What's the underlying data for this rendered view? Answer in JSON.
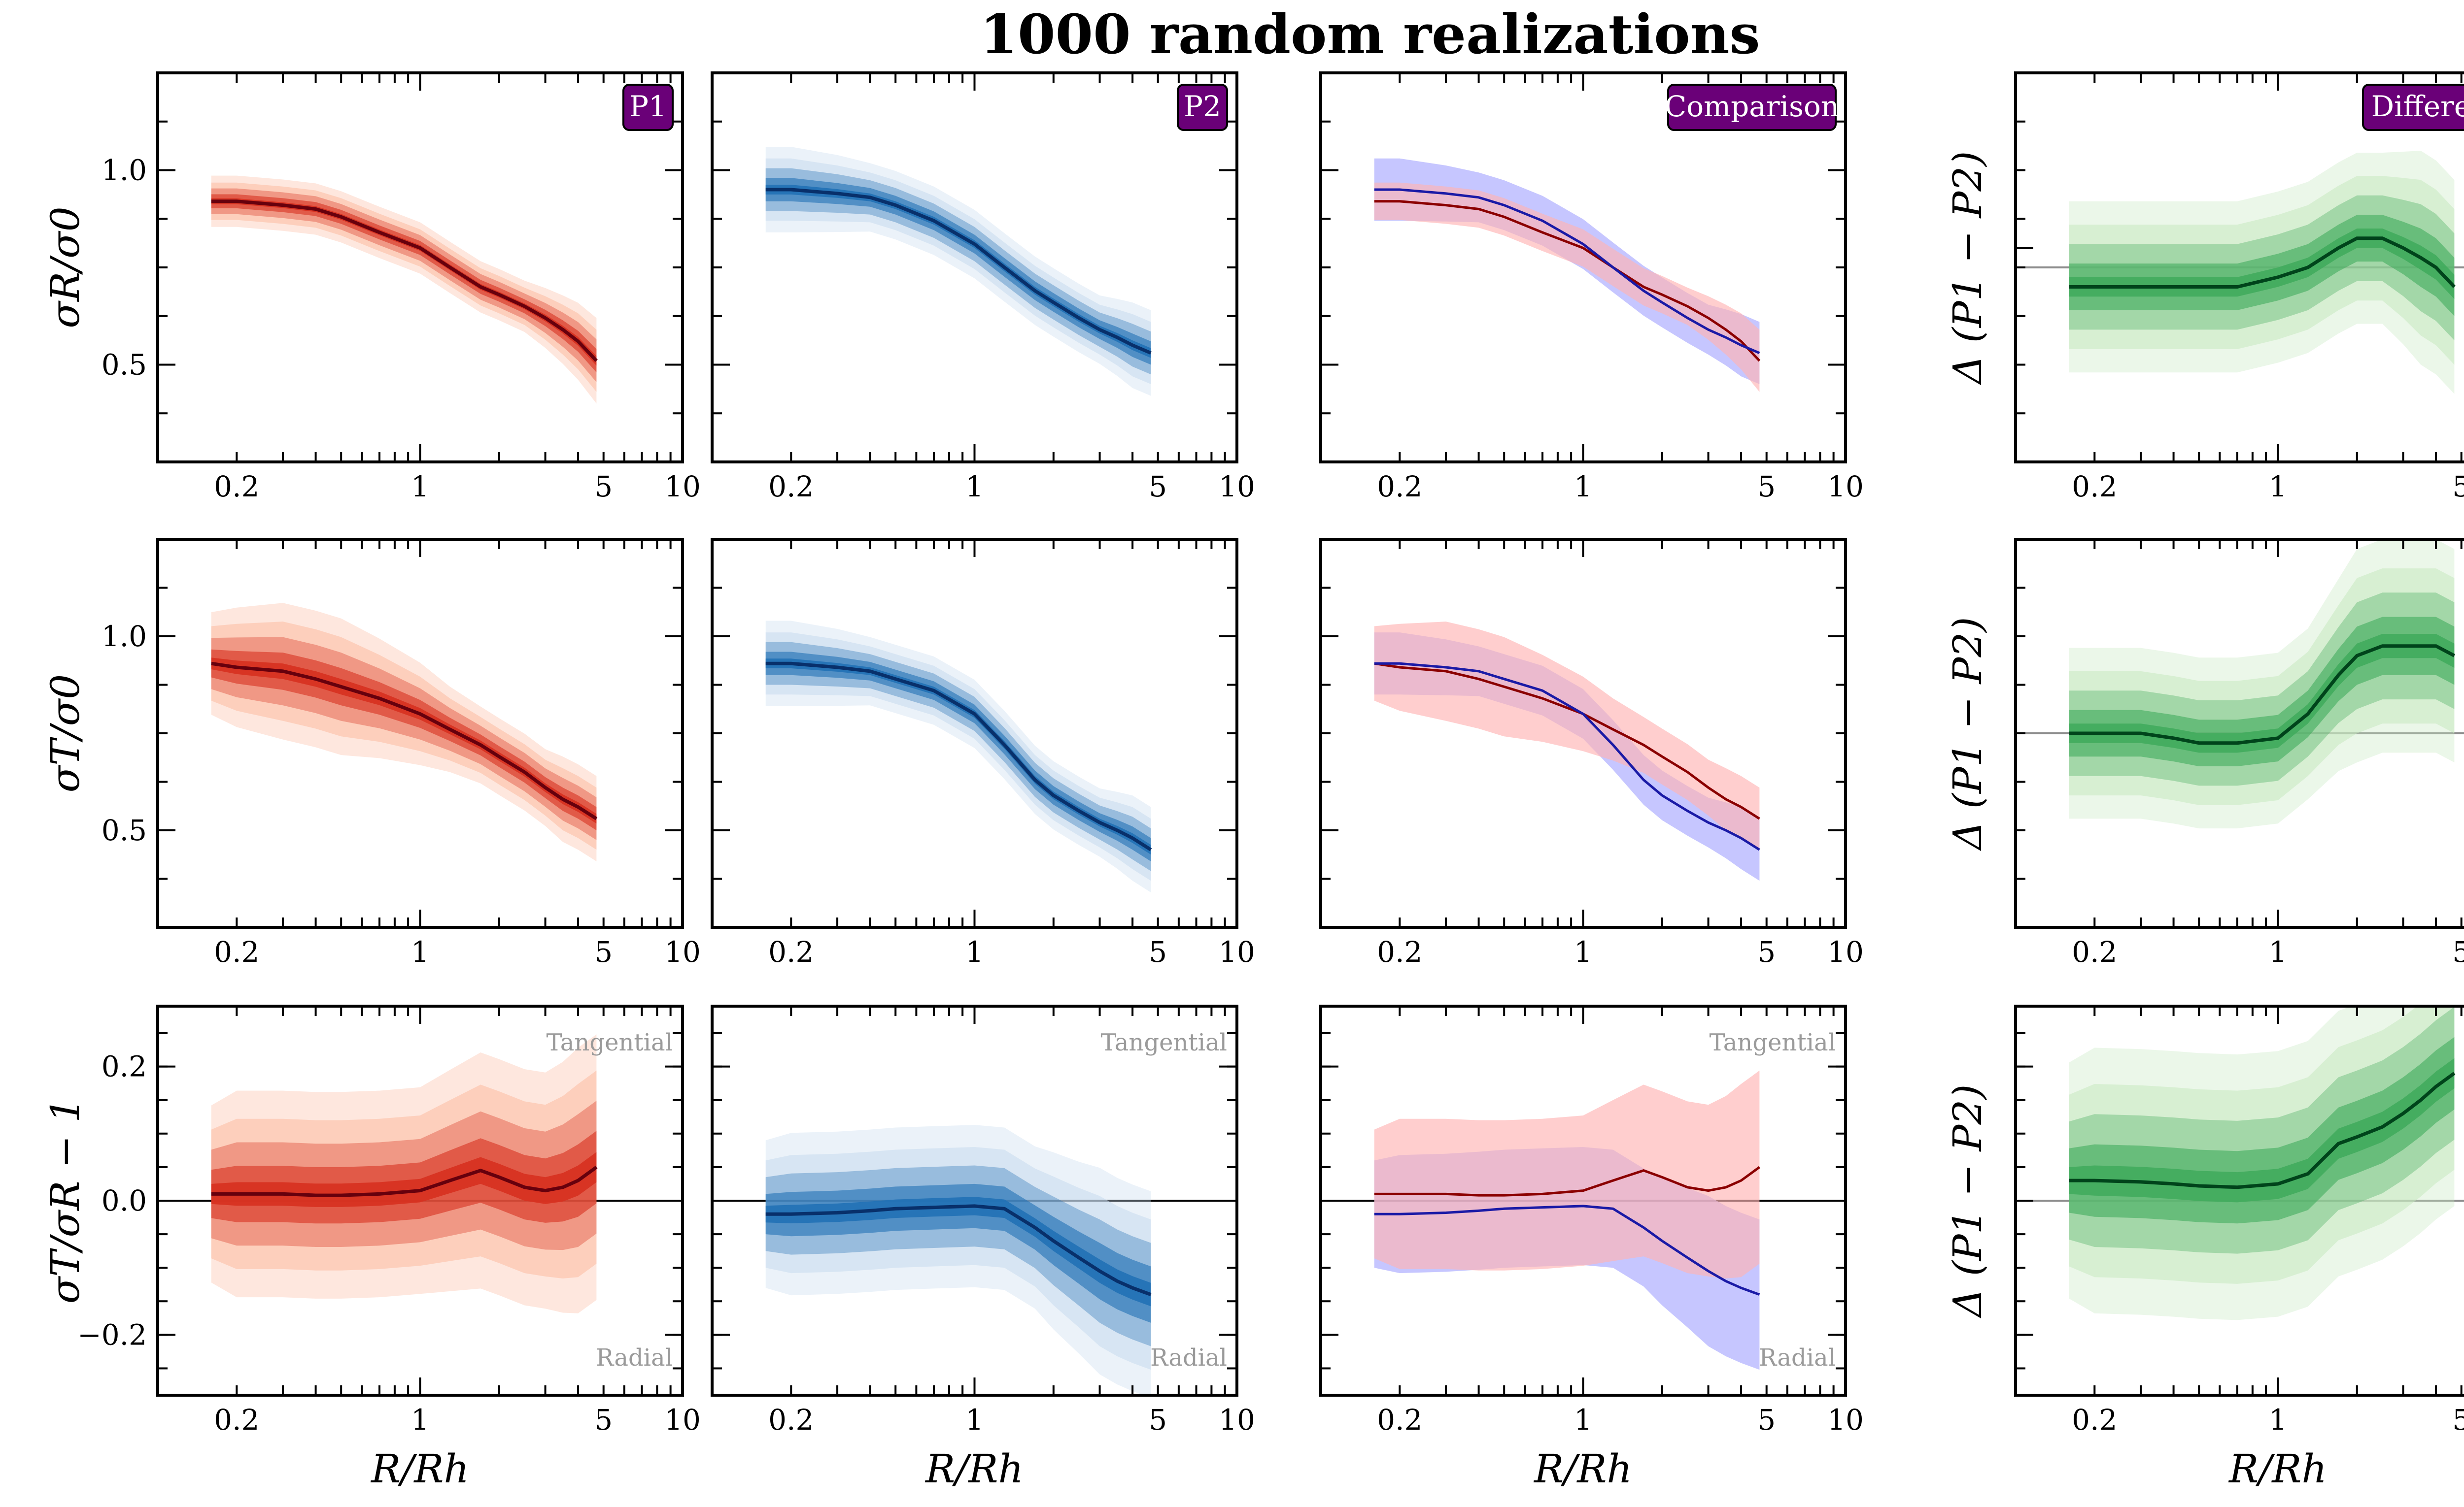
{
  "title": "1000 random realizations",
  "colors": {
    "P1": "#d7301f",
    "P1_band": "#fcbba1",
    "P1_line": "#67000d",
    "P2": "#2171b5",
    "P2_band": "#c6dbef",
    "P2_line": "#08306b",
    "diff": "#41ab5d",
    "diff_band": "#c7e9c0",
    "diff_line": "#00441b",
    "cmp_red_band": "#ffb3b3",
    "cmp_blue_band": "#b3b3ff",
    "badge_bg": "#6a0078"
  },
  "chart_data": {
    "type": "line",
    "x_scale": "log",
    "xlim": [
      0.1,
      10
    ],
    "xticks": [
      0.2,
      1,
      5,
      10
    ],
    "xtick_labels": [
      "0.2",
      "1",
      "5",
      "10"
    ],
    "xlabel": "R/Rh",
    "x": [
      0.16,
      0.2,
      0.3,
      0.4,
      0.5,
      0.7,
      1.0,
      1.3,
      1.7,
      2.0,
      2.5,
      3.0,
      3.5,
      4.0,
      4.7
    ],
    "rows": [
      {
        "ylabel": "σR/σ0",
        "ylim": [
          0.25,
          1.25
        ],
        "yticks": [
          0.5,
          1.0
        ],
        "ytick_labels": [
          "0.5",
          "1.0"
        ],
        "series": [
          {
            "name": "P1",
            "values": [
              0.92,
              0.92,
              0.91,
              0.9,
              0.88,
              0.84,
              0.8,
              0.75,
              0.7,
              0.68,
              0.65,
              0.62,
              0.59,
              0.56,
              0.51
            ],
            "spread": [
              0.03,
              0.03,
              0.03,
              0.03,
              0.03,
              0.03,
              0.03,
              0.03,
              0.03,
              0.03,
              0.03,
              0.035,
              0.04,
              0.045,
              0.05
            ]
          },
          {
            "name": "P2",
            "values": [
              0.95,
              0.95,
              0.94,
              0.93,
              0.91,
              0.87,
              0.81,
              0.75,
              0.69,
              0.66,
              0.62,
              0.59,
              0.57,
              0.55,
              0.53
            ],
            "spread": [
              0.05,
              0.05,
              0.045,
              0.04,
              0.04,
              0.04,
              0.04,
              0.04,
              0.04,
              0.04,
              0.04,
              0.04,
              0.045,
              0.05,
              0.05
            ]
          }
        ],
        "difference": {
          "values": [
            -0.02,
            -0.02,
            -0.02,
            -0.02,
            -0.02,
            -0.02,
            -0.01,
            0.0,
            0.02,
            0.03,
            0.03,
            0.02,
            0.01,
            0.0,
            -0.02
          ],
          "spread": [
            0.04,
            0.04,
            0.04,
            0.04,
            0.04,
            0.04,
            0.04,
            0.04,
            0.04,
            0.04,
            0.04,
            0.045,
            0.05,
            0.05,
            0.05
          ],
          "ylim": [
            -0.2,
            0.2
          ]
        }
      },
      {
        "ylabel": "σT/σ0",
        "ylim": [
          0.25,
          1.25
        ],
        "yticks": [
          0.5,
          1.0
        ],
        "ytick_labels": [
          "0.5",
          "1.0"
        ],
        "series": [
          {
            "name": "P1",
            "values": [
              0.93,
              0.92,
              0.91,
              0.89,
              0.87,
              0.84,
              0.8,
              0.76,
              0.72,
              0.69,
              0.65,
              0.61,
              0.58,
              0.56,
              0.53
            ],
            "spread": [
              0.06,
              0.07,
              0.08,
              0.08,
              0.08,
              0.07,
              0.06,
              0.05,
              0.045,
              0.045,
              0.045,
              0.045,
              0.05,
              0.05,
              0.05
            ]
          },
          {
            "name": "P2",
            "values": [
              0.93,
              0.93,
              0.92,
              0.91,
              0.89,
              0.86,
              0.8,
              0.72,
              0.63,
              0.59,
              0.55,
              0.52,
              0.5,
              0.48,
              0.45
            ],
            "spread": [
              0.05,
              0.05,
              0.045,
              0.04,
              0.04,
              0.04,
              0.04,
              0.04,
              0.04,
              0.04,
              0.04,
              0.04,
              0.045,
              0.05,
              0.05
            ]
          }
        ],
        "difference": {
          "values": [
            0.0,
            0.0,
            0.0,
            -0.005,
            -0.01,
            -0.01,
            -0.005,
            0.02,
            0.06,
            0.08,
            0.09,
            0.09,
            0.09,
            0.09,
            0.08
          ],
          "spread": [
            0.04,
            0.04,
            0.04,
            0.04,
            0.04,
            0.04,
            0.04,
            0.04,
            0.045,
            0.05,
            0.05,
            0.05,
            0.05,
            0.05,
            0.05
          ],
          "ylim": [
            -0.2,
            0.2
          ]
        }
      },
      {
        "ylabel": "σT/σR − 1",
        "ylim": [
          -0.29,
          0.29
        ],
        "yticks": [
          -0.2,
          0.0,
          0.2
        ],
        "ytick_labels": [
          "−0.2",
          "0.0",
          "0.2"
        ],
        "ref_line": 0,
        "annotations": {
          "top": "Tangential",
          "bottom": "Radial"
        },
        "series": [
          {
            "name": "P1",
            "values": [
              0.01,
              0.01,
              0.01,
              0.008,
              0.008,
              0.01,
              0.015,
              0.03,
              0.045,
              0.035,
              0.02,
              0.015,
              0.02,
              0.03,
              0.05
            ],
            "spread": [
              0.06,
              0.07,
              0.07,
              0.07,
              0.07,
              0.07,
              0.07,
              0.075,
              0.08,
              0.08,
              0.08,
              0.08,
              0.085,
              0.09,
              0.09
            ]
          },
          {
            "name": "P2",
            "values": [
              -0.02,
              -0.02,
              -0.018,
              -0.015,
              -0.012,
              -0.01,
              -0.008,
              -0.012,
              -0.04,
              -0.06,
              -0.085,
              -0.105,
              -0.12,
              -0.13,
              -0.14
            ],
            "spread": [
              0.05,
              0.055,
              0.055,
              0.055,
              0.055,
              0.055,
              0.055,
              0.055,
              0.055,
              0.06,
              0.065,
              0.07,
              0.07,
              0.07,
              0.07
            ]
          }
        ],
        "difference": {
          "values": [
            0.03,
            0.03,
            0.028,
            0.025,
            0.022,
            0.02,
            0.025,
            0.04,
            0.085,
            0.095,
            0.11,
            0.13,
            0.15,
            0.17,
            0.19
          ],
          "spread": [
            0.08,
            0.09,
            0.09,
            0.09,
            0.09,
            0.09,
            0.09,
            0.09,
            0.09,
            0.09,
            0.09,
            0.09,
            0.09,
            0.09,
            0.09
          ],
          "ylim": [
            -0.29,
            0.29
          ]
        }
      }
    ],
    "columns": [
      {
        "badge": "P1"
      },
      {
        "badge": "P2"
      },
      {
        "badge": "Comparison"
      },
      {
        "badge": "Difference",
        "ylabel": "Δ (P1 − P2)"
      }
    ]
  }
}
